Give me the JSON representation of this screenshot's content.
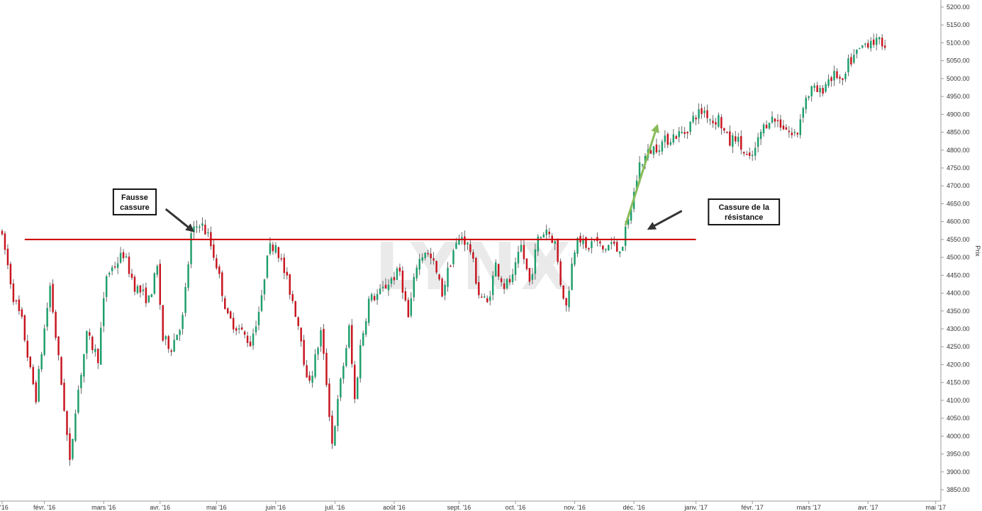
{
  "watermark": "LYNX",
  "chart_data": {
    "type": "candlestick",
    "ylabel": "Prix",
    "ylim": [
      3820,
      5220
    ],
    "y_ticks": [
      3850,
      3900,
      3950,
      4000,
      4050,
      4100,
      4150,
      4200,
      4250,
      4300,
      4350,
      4400,
      4450,
      4500,
      4550,
      4600,
      4650,
      4700,
      4750,
      4800,
      4850,
      4900,
      4950,
      5000,
      5050,
      5100,
      5150,
      5200
    ],
    "y_tick_suffix": ".00",
    "x_ticks": [
      "'16",
      "févr. '16",
      "mars '16",
      "avr. '16",
      "mai '16",
      "juin '16",
      "juil. '16",
      "août '16",
      "sept. '16",
      "oct. '16",
      "nov. '16",
      "déc. '16",
      "janv. '17",
      "févr. '17",
      "mars '17",
      "avr. '17",
      "mai '17"
    ],
    "x_tick_index": [
      0,
      15,
      36,
      56,
      76,
      97,
      118,
      139,
      162,
      182,
      203,
      224,
      246,
      266,
      286,
      307,
      331
    ],
    "x_count": 320,
    "resistance": {
      "level": 4550,
      "from_index": 8,
      "to_index": 246,
      "color": "#cc0000"
    },
    "colors": {
      "up": "#1e9e6c",
      "down": "#c8141e",
      "arrow_dark": "#333333",
      "arrow_green": "#88bb5a"
    },
    "annotations": [
      {
        "name": "fausse-cassure",
        "lines": [
          "Fausse",
          "cassure"
        ],
        "box_index": 47,
        "box_price": 4655,
        "arrow_from": [
          58,
          4635
        ],
        "arrow_to": [
          67,
          4578
        ]
      },
      {
        "name": "cassure-resistance",
        "lines": [
          "Cassure de la",
          "résistance"
        ],
        "box_index": 263,
        "box_price": 4627,
        "arrow_from": [
          241,
          4630
        ],
        "arrow_to": [
          230,
          4583
        ]
      }
    ],
    "breakout_arrow": {
      "from": [
        221,
        4590
      ],
      "to": [
        232,
        4862
      ]
    },
    "anchors": [
      [
        0,
        4580
      ],
      [
        2,
        4520
      ],
      [
        5,
        4390
      ],
      [
        8,
        4320
      ],
      [
        11,
        4180
      ],
      [
        13,
        4110
      ],
      [
        16,
        4300
      ],
      [
        18,
        4420
      ],
      [
        20,
        4280
      ],
      [
        23,
        4080
      ],
      [
        25,
        3920
      ],
      [
        27,
        4080
      ],
      [
        31,
        4280
      ],
      [
        35,
        4220
      ],
      [
        38,
        4450
      ],
      [
        44,
        4510
      ],
      [
        48,
        4420
      ],
      [
        53,
        4380
      ],
      [
        56,
        4470
      ],
      [
        58,
        4270
      ],
      [
        61,
        4250
      ],
      [
        65,
        4330
      ],
      [
        68,
        4560
      ],
      [
        71,
        4600
      ],
      [
        74,
        4560
      ],
      [
        77,
        4480
      ],
      [
        81,
        4330
      ],
      [
        85,
        4300
      ],
      [
        89,
        4260
      ],
      [
        93,
        4380
      ],
      [
        95,
        4520
      ],
      [
        98,
        4540
      ],
      [
        101,
        4460
      ],
      [
        104,
        4380
      ],
      [
        107,
        4280
      ],
      [
        109,
        4150
      ],
      [
        111,
        4180
      ],
      [
        114,
        4290
      ],
      [
        116,
        4150
      ],
      [
        118,
        3980
      ],
      [
        121,
        4150
      ],
      [
        124,
        4300
      ],
      [
        126,
        4100
      ],
      [
        128,
        4250
      ],
      [
        131,
        4380
      ],
      [
        135,
        4400
      ],
      [
        139,
        4440
      ],
      [
        142,
        4460
      ],
      [
        145,
        4330
      ],
      [
        148,
        4480
      ],
      [
        151,
        4520
      ],
      [
        154,
        4480
      ],
      [
        157,
        4400
      ],
      [
        161,
        4520
      ],
      [
        164,
        4560
      ],
      [
        167,
        4520
      ],
      [
        170,
        4400
      ],
      [
        173,
        4370
      ],
      [
        176,
        4480
      ],
      [
        179,
        4420
      ],
      [
        182,
        4440
      ],
      [
        185,
        4530
      ],
      [
        188,
        4430
      ],
      [
        191,
        4550
      ],
      [
        194,
        4580
      ],
      [
        197,
        4540
      ],
      [
        199,
        4430
      ],
      [
        201,
        4360
      ],
      [
        203,
        4480
      ],
      [
        205,
        4570
      ],
      [
        208,
        4520
      ],
      [
        211,
        4550
      ],
      [
        214,
        4520
      ],
      [
        217,
        4540
      ],
      [
        219,
        4520
      ],
      [
        221,
        4540
      ],
      [
        223,
        4600
      ],
      [
        225,
        4680
      ],
      [
        227,
        4760
      ],
      [
        231,
        4800
      ],
      [
        235,
        4820
      ],
      [
        239,
        4840
      ],
      [
        243,
        4850
      ],
      [
        247,
        4900
      ],
      [
        250,
        4910
      ],
      [
        253,
        4880
      ],
      [
        255,
        4890
      ],
      [
        257,
        4850
      ],
      [
        259,
        4820
      ],
      [
        261,
        4840
      ],
      [
        264,
        4790
      ],
      [
        266,
        4770
      ],
      [
        268,
        4800
      ],
      [
        270,
        4850
      ],
      [
        273,
        4890
      ],
      [
        276,
        4880
      ],
      [
        279,
        4860
      ],
      [
        281,
        4840
      ],
      [
        283,
        4850
      ],
      [
        285,
        4930
      ],
      [
        288,
        4970
      ],
      [
        291,
        4960
      ],
      [
        294,
        5000
      ],
      [
        297,
        5010
      ],
      [
        299,
        4980
      ],
      [
        301,
        5040
      ],
      [
        304,
        5070
      ],
      [
        306,
        5090
      ],
      [
        309,
        5110
      ],
      [
        311,
        5100
      ],
      [
        313,
        5100
      ]
    ]
  }
}
